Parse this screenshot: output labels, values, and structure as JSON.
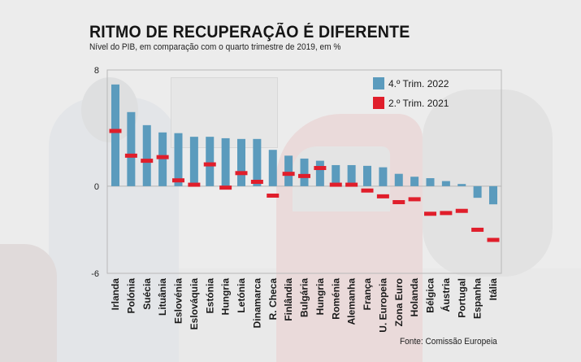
{
  "header": {
    "title": "RITMO DE RECUPERAÇÃO É DIFERENTE",
    "subtitle": "Nível do PIB, em comparação com o quarto trimestre de 2019, em %"
  },
  "footer": {
    "source": "Fonte: Comissão Europeia"
  },
  "colors": {
    "bar": "#5b9bbd",
    "marker": "#e01e2b",
    "frame": "#b8b8b8",
    "zero_line": "#b5b5b5"
  },
  "chart_data": {
    "type": "bar",
    "title": "RITMO DE RECUPERAÇÃO É DIFERENTE",
    "subtitle": "Nível do PIB, em comparação com o quarto trimestre de 2019, em %",
    "xlabel": "",
    "ylabel": "",
    "ylim": [
      -6,
      8
    ],
    "yticks": [
      8,
      0,
      -6
    ],
    "grid": false,
    "legend_position": "top-right",
    "categories": [
      "Irlanda",
      "Polónia",
      "Suécia",
      "Lituânia",
      "Eslovénia",
      "Eslováquia",
      "Estónia",
      "Hungria",
      "Letónia",
      "Dinamarca",
      "R. Checa",
      "Finlândia",
      "Bulgária",
      "Hungria",
      "Roménia",
      "Alemanha",
      "França",
      "U. Europeia",
      "Zona Euro",
      "Holanda",
      "Bélgica",
      "Áustria",
      "Portugal",
      "Espanha",
      "Itália"
    ],
    "series": [
      {
        "name": "4.º Trim. 2022",
        "style": "bar",
        "values": [
          7.0,
          5.1,
          4.2,
          3.7,
          3.65,
          3.4,
          3.4,
          3.3,
          3.25,
          3.25,
          2.5,
          2.1,
          1.9,
          1.75,
          1.45,
          1.45,
          1.4,
          1.3,
          0.85,
          0.65,
          0.55,
          0.35,
          0.15,
          -0.8,
          -1.25
        ]
      },
      {
        "name": "2.º Trim. 2021",
        "style": "marker",
        "values": [
          3.8,
          2.1,
          1.75,
          2.0,
          0.4,
          0.1,
          1.5,
          -0.1,
          0.9,
          0.3,
          -0.65,
          0.85,
          0.7,
          1.25,
          0.1,
          0.1,
          -0.3,
          -0.7,
          -1.1,
          -0.9,
          -1.9,
          -1.85,
          -1.7,
          -3.0,
          -3.7
        ]
      }
    ],
    "source": "Fonte: Comissão Europeia"
  }
}
